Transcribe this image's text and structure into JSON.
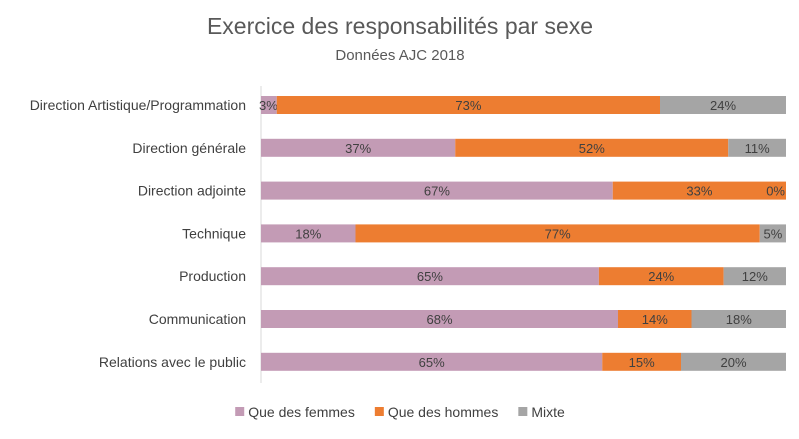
{
  "chart_data": {
    "type": "bar",
    "orientation": "horizontal",
    "stacked": true,
    "title": "Exercice des responsabilités par sexe",
    "subtitle": "Données AJC 2018",
    "categories": [
      "Direction Artistique/Programmation",
      "Direction générale",
      "Direction adjointe",
      "Technique",
      "Production",
      "Communication",
      "Relations avec le public"
    ],
    "series": [
      {
        "name": "Que des femmes",
        "color": "#c39bb5",
        "values": [
          3,
          37,
          67,
          18,
          65,
          68,
          65
        ]
      },
      {
        "name": "Que des hommes",
        "color": "#ed7d31",
        "values": [
          73,
          52,
          33,
          77,
          24,
          14,
          15
        ]
      },
      {
        "name": "Mixte",
        "color": "#a5a5a5",
        "values": [
          24,
          11,
          0,
          5,
          12,
          18,
          20
        ]
      }
    ],
    "xlim": [
      0,
      100
    ],
    "value_suffix": "%",
    "legend_position": "bottom",
    "grid": false
  }
}
